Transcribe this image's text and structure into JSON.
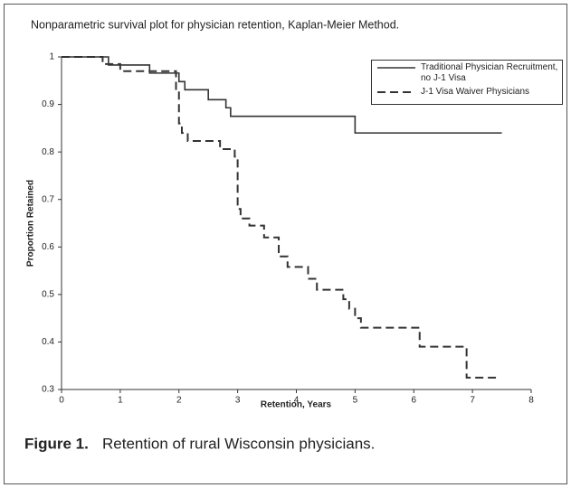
{
  "chart_data": {
    "type": "step",
    "title": "Nonparametric survival plot for physician retention, Kaplan-Meier Method.",
    "caption_label": "Figure 1.",
    "caption": "Retention of rural Wisconsin physicians.",
    "x_label": "Retention, Years",
    "y_label": "Proportion Retained",
    "xlim": [
      0,
      8
    ],
    "xticks": [
      0,
      1,
      2,
      3,
      4,
      5,
      6,
      7,
      8
    ],
    "ylim": [
      0.3,
      1
    ],
    "yticks": [
      0.3,
      0.4,
      0.5,
      0.6,
      0.7,
      0.8,
      0.9,
      1
    ],
    "series": [
      {
        "name": "Traditional Physician Recruitment, no J-1 Visa",
        "color": "#333333",
        "dash": "solid",
        "x": [
          0,
          0.8,
          1.5,
          2.0,
          2.1,
          2.5,
          2.8,
          2.88,
          5.0,
          7.5
        ],
        "values": [
          1,
          0.983,
          0.966,
          0.948,
          0.931,
          0.91,
          0.893,
          0.875,
          0.84,
          0.84
        ]
      },
      {
        "name": "J-1 Visa Waiver Physicians",
        "color": "#333333",
        "dash": "dashed",
        "x": [
          0,
          0.7,
          1.0,
          1.95,
          2.0,
          2.05,
          2.15,
          2.7,
          2.95,
          3.0,
          3.05,
          3.2,
          3.45,
          3.7,
          3.85,
          4.2,
          4.35,
          4.8,
          4.9,
          5.0,
          5.1,
          6.1,
          6.9,
          7.4
        ],
        "values": [
          1,
          0.985,
          0.97,
          0.93,
          0.86,
          0.84,
          0.823,
          0.806,
          0.79,
          0.68,
          0.66,
          0.645,
          0.62,
          0.58,
          0.558,
          0.533,
          0.51,
          0.49,
          0.47,
          0.45,
          0.43,
          0.39,
          0.325,
          0.325
        ]
      }
    ]
  }
}
